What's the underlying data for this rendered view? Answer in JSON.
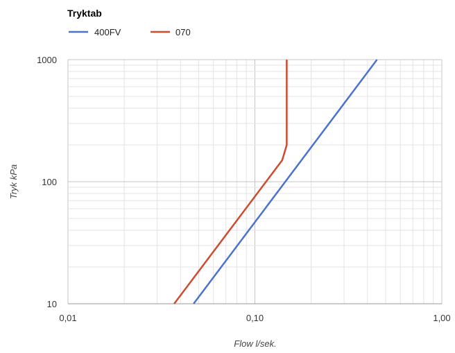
{
  "chart_data": {
    "type": "line",
    "title": "Tryktab",
    "xlabel": "Flow l/sek.",
    "ylabel": "Tryk kPa",
    "x_scale": "log",
    "y_scale": "log",
    "xlim": [
      0.01,
      1.0
    ],
    "ylim": [
      10,
      1000
    ],
    "x_tick_labels": [
      "0,01",
      "0,10",
      "1,00"
    ],
    "y_tick_labels": [
      "10",
      "100",
      "1000"
    ],
    "grid": true,
    "legend_position": "top-left",
    "series": [
      {
        "name": "400FV",
        "color": "#4a72d1",
        "points": [
          [
            0.047,
            10
          ],
          [
            0.45,
            1000
          ]
        ]
      },
      {
        "name": "070",
        "color": "#d24a2c",
        "points": [
          [
            0.037,
            10
          ],
          [
            0.14,
            150
          ],
          [
            0.148,
            200
          ],
          [
            0.148,
            1000
          ]
        ]
      }
    ]
  }
}
